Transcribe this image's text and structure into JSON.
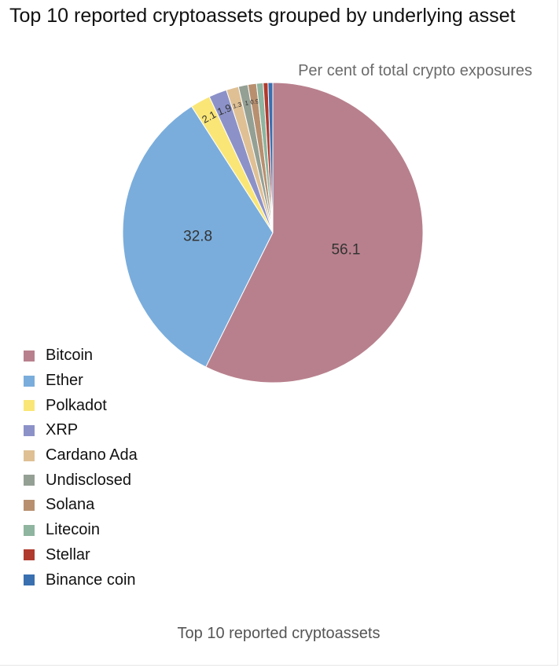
{
  "title": "Top 10 reported cryptoassets grouped by underlying asset",
  "subtitle": "Per cent of total crypto exposures",
  "footer": "Top 10 reported cryptoassets",
  "chart_data": {
    "type": "pie",
    "title": "Top 10 reported cryptoassets grouped by underlying asset",
    "subtitle": "Per cent of total crypto exposures",
    "start_angle": "12 o'clock",
    "direction": "clockwise",
    "legend_position": "left",
    "slices": [
      {
        "label": "Bitcoin",
        "value": 56.1,
        "color": "#b8808d",
        "data_label": "56.1"
      },
      {
        "label": "Ether",
        "value": 32.8,
        "color": "#7aaddc",
        "data_label": "32.8"
      },
      {
        "label": "Polkadot",
        "value": 2.1,
        "color": "#fae676",
        "data_label": "2.1"
      },
      {
        "label": "XRP",
        "value": 1.9,
        "color": "#8c92c8",
        "data_label": "1.9"
      },
      {
        "label": "Cardano Ada",
        "value": 1.3,
        "color": "#dfc095",
        "data_label": "1.3"
      },
      {
        "label": "Undisclosed",
        "value": 1.0,
        "color": "#95a095",
        "data_label": "1"
      },
      {
        "label": "Solana",
        "value": 0.9,
        "color": "#b89070",
        "data_label": "0.9"
      },
      {
        "label": "Litecoin",
        "value": 0.7,
        "color": "#8fb49f",
        "data_label": ""
      },
      {
        "label": "Stellar",
        "value": 0.5,
        "color": "#b03a2e",
        "data_label": ""
      },
      {
        "label": "Binance coin",
        "value": 0.5,
        "color": "#3a6fb0",
        "data_label": ""
      }
    ]
  }
}
